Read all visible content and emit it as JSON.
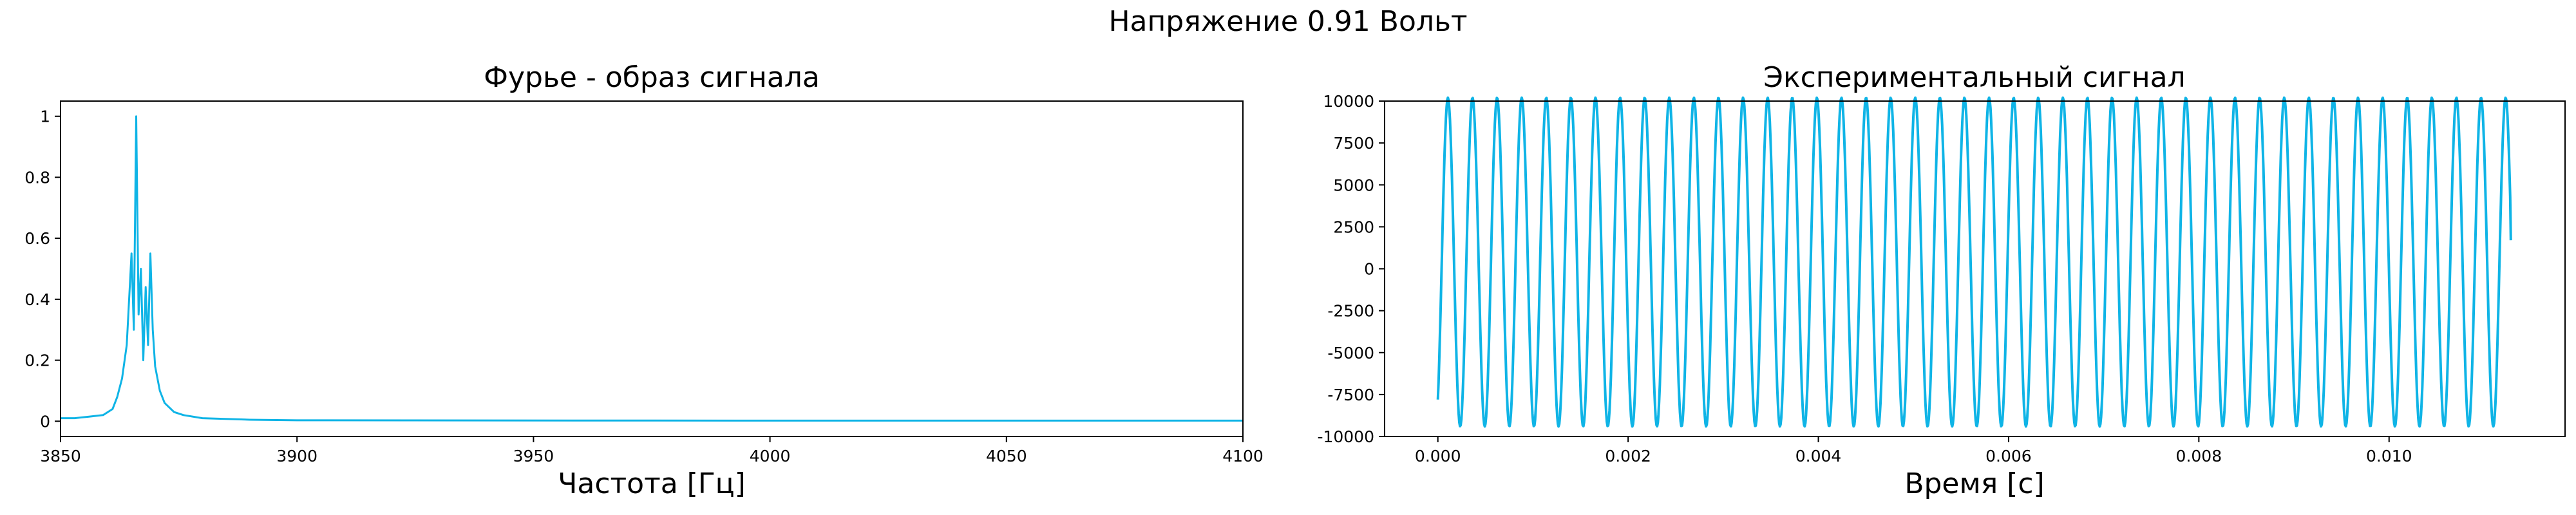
{
  "figure": {
    "suptitle": "Напряжение 0.91 Вольт"
  },
  "chart_data": [
    {
      "type": "line",
      "title": "Фурье - образ сигнала",
      "xlabel": "Частота [Гц]",
      "ylabel": "",
      "xlim": [
        3850,
        4100
      ],
      "ylim": [
        -0.05,
        1.05
      ],
      "xticks": [
        3850,
        3900,
        3950,
        4000,
        4050,
        4100
      ],
      "yticks": [
        0.0,
        0.2,
        0.4,
        0.6,
        0.8,
        1.0
      ],
      "grid": false,
      "color": "#0fb4e6",
      "series": [
        {
          "x": [
            3850,
            3853,
            3856,
            3859,
            3861,
            3862,
            3863,
            3864,
            3865,
            3865.5,
            3866,
            3866.5,
            3867,
            3867.5,
            3868,
            3868.5,
            3869,
            3869.5,
            3870,
            3871,
            3872,
            3874,
            3876,
            3880,
            3890,
            3900,
            4000,
            4100
          ],
          "y": [
            0.01,
            0.01,
            0.015,
            0.02,
            0.04,
            0.08,
            0.14,
            0.25,
            0.55,
            0.3,
            1.0,
            0.35,
            0.5,
            0.2,
            0.44,
            0.25,
            0.55,
            0.3,
            0.18,
            0.1,
            0.06,
            0.03,
            0.02,
            0.01,
            0.005,
            0.003,
            0.002,
            0.002
          ]
        }
      ]
    },
    {
      "type": "line",
      "title": "Экспериментальный сигнал",
      "xlabel": "Время [с]",
      "ylabel": "",
      "xlim": [
        -0.00056,
        0.01185
      ],
      "ylim": [
        -10000,
        10000
      ],
      "xticks": [
        0.0,
        0.002,
        0.004,
        0.006,
        0.008,
        0.01
      ],
      "xtick_labels": [
        "0.000",
        "0.002",
        "0.004",
        "0.006",
        "0.008",
        "0.010"
      ],
      "yticks": [
        -10000,
        -7500,
        -5000,
        -2500,
        0,
        2500,
        5000,
        7500,
        10000
      ],
      "grid": false,
      "color": "#0fb4e6",
      "signal": {
        "t_start": 0.0,
        "t_end": 0.01128,
        "frequency_hz": 3867,
        "amplitude": 9800,
        "offset": 400,
        "initial_value": -7800,
        "final_value": 1700,
        "cycles_visible": 44
      }
    }
  ]
}
